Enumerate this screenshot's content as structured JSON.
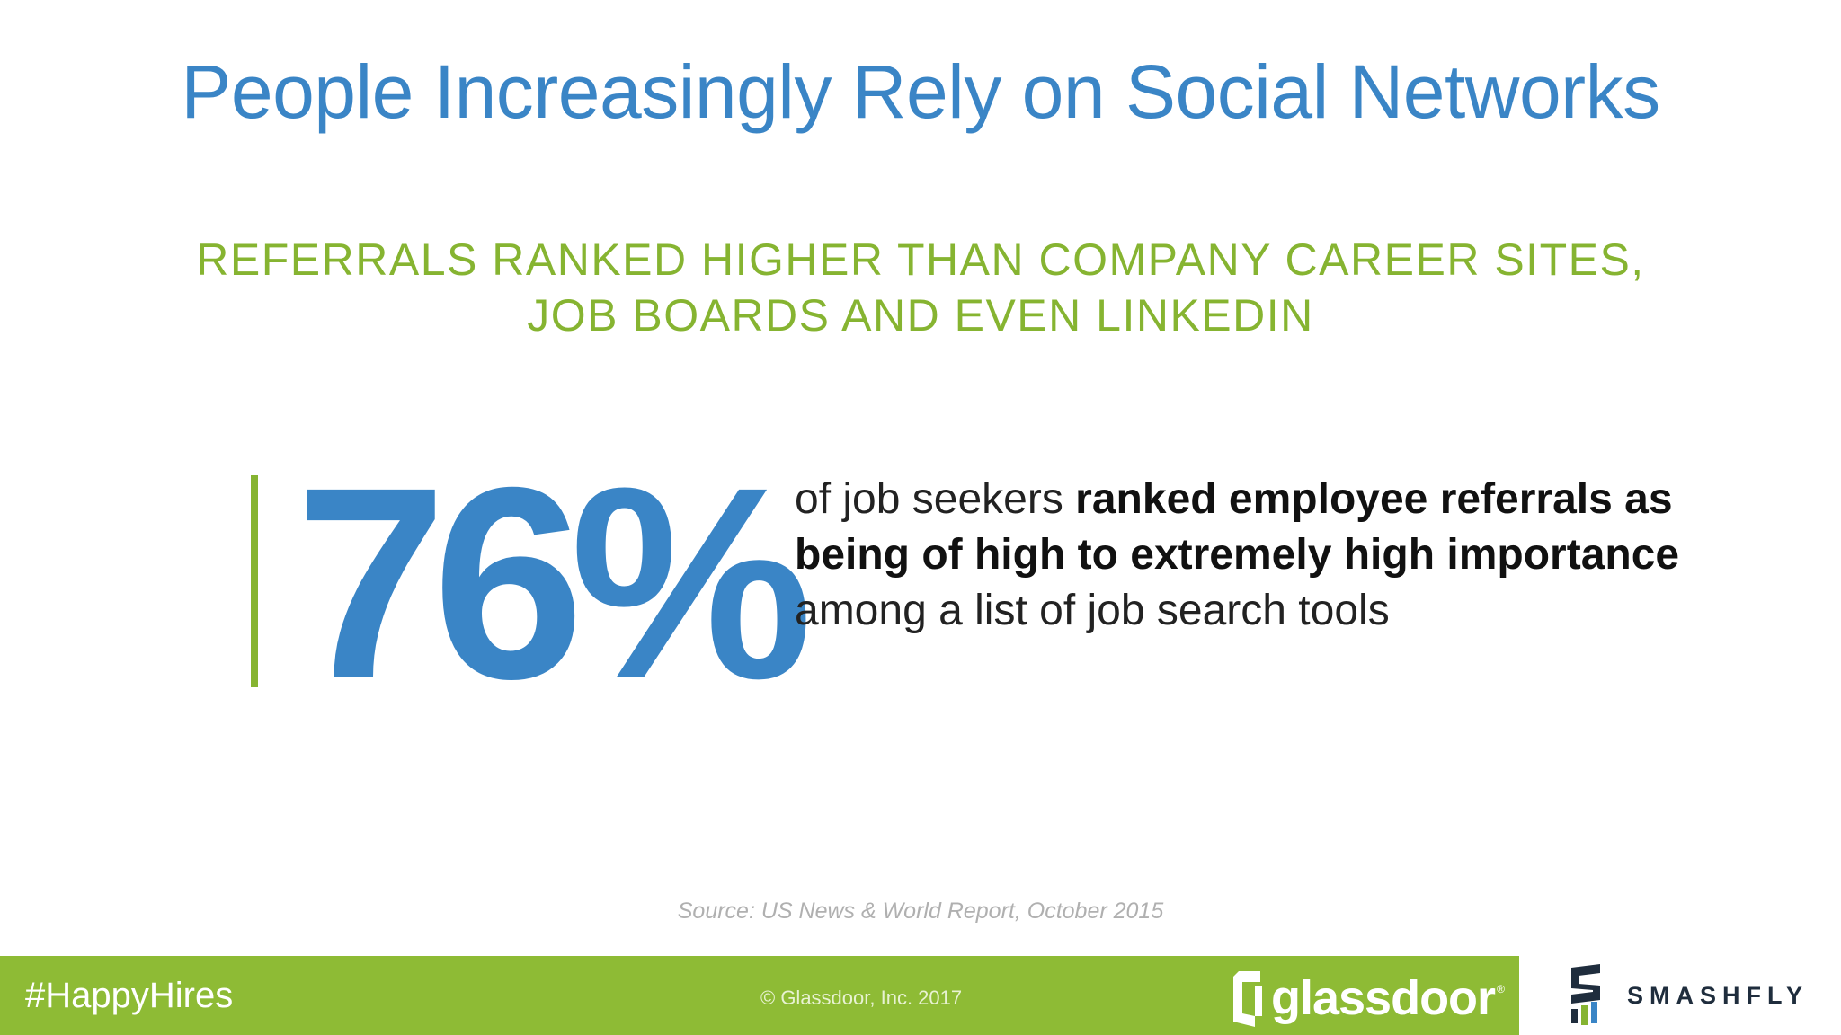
{
  "slide": {
    "title": "People Increasingly Rely on Social Networks",
    "subtitle_lines": [
      "REFERRALS RANKED HIGHER THAN COMPANY CAREER SITES,",
      "JOB BOARDS AND EVEN LINKEDIN"
    ],
    "stat": {
      "value": "76%",
      "text_segments": [
        {
          "text": "of job seekers ",
          "style": "light"
        },
        {
          "text": "ranked employee referrals as being of high to extremely high importance",
          "style": "bold"
        },
        {
          "text": " among a list of job search tools",
          "style": "light"
        }
      ]
    },
    "source": "Source: US News & World Report, October 2015"
  },
  "footer": {
    "hashtag": "#HappyHires",
    "copyright": "© Glassdoor, Inc. 2017",
    "glassdoor_logo": {
      "text": "glassdoor",
      "mark": "®",
      "icon": "door-icon"
    },
    "smashfly_logo": {
      "text": "SMASHFLY",
      "icon": "smashfly-s-icon"
    }
  },
  "colors": {
    "title_blue": "#3a85c6",
    "accent_green": "#86b431",
    "footer_green": "#8ebb35",
    "source_gray": "#b0b0b0"
  }
}
